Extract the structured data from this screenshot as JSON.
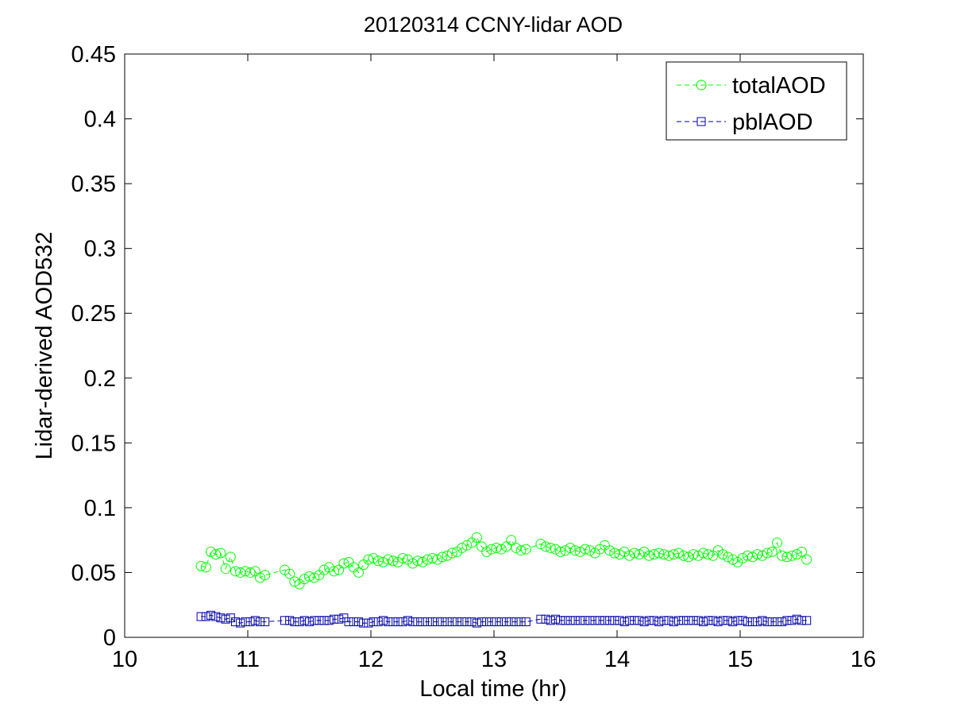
{
  "chart_data": {
    "type": "line",
    "title": "20120314 CCNY-lidar AOD",
    "xlabel": "Local time (hr)",
    "ylabel": "Lidar-derived AOD532",
    "xlim": [
      10,
      16
    ],
    "ylim": [
      0,
      0.45
    ],
    "x_ticks": [
      "10",
      "11",
      "12",
      "13",
      "14",
      "15",
      "16"
    ],
    "y_ticks": [
      "0",
      "0.05",
      "0.1",
      "0.15",
      "0.2",
      "0.25",
      "0.3",
      "0.35",
      "0.4",
      "0.45"
    ],
    "grid": false,
    "legend_position": "top-right",
    "series": [
      {
        "name": "totalAOD",
        "color": "#00ff00",
        "marker": "circle",
        "line_style": "dashed",
        "x": [
          10.62,
          10.66,
          10.7,
          10.74,
          10.78,
          10.82,
          10.86,
          10.9,
          10.94,
          10.98,
          11.02,
          11.06,
          11.1,
          11.14,
          11.3,
          11.34,
          11.38,
          11.42,
          11.46,
          11.5,
          11.54,
          11.58,
          11.62,
          11.66,
          11.7,
          11.74,
          11.78,
          11.82,
          11.86,
          11.9,
          11.94,
          11.98,
          12.02,
          12.06,
          12.1,
          12.14,
          12.18,
          12.22,
          12.26,
          12.3,
          12.34,
          12.38,
          12.42,
          12.46,
          12.5,
          12.54,
          12.58,
          12.62,
          12.66,
          12.7,
          12.74,
          12.78,
          12.82,
          12.86,
          12.9,
          12.94,
          12.98,
          13.02,
          13.06,
          13.1,
          13.14,
          13.18,
          13.22,
          13.26,
          13.38,
          13.42,
          13.46,
          13.5,
          13.54,
          13.58,
          13.62,
          13.66,
          13.7,
          13.74,
          13.78,
          13.82,
          13.86,
          13.9,
          13.94,
          13.98,
          14.02,
          14.06,
          14.1,
          14.14,
          14.18,
          14.22,
          14.26,
          14.3,
          14.34,
          14.38,
          14.42,
          14.46,
          14.5,
          14.54,
          14.58,
          14.62,
          14.66,
          14.7,
          14.74,
          14.78,
          14.82,
          14.86,
          14.9,
          14.94,
          14.98,
          15.02,
          15.06,
          15.1,
          15.14,
          15.18,
          15.22,
          15.26,
          15.3,
          15.34,
          15.38,
          15.42,
          15.46,
          15.5,
          15.54
        ],
        "values": [
          0.055,
          0.054,
          0.066,
          0.064,
          0.065,
          0.053,
          0.062,
          0.051,
          0.05,
          0.051,
          0.05,
          0.051,
          0.046,
          0.048,
          0.052,
          0.049,
          0.043,
          0.041,
          0.045,
          0.047,
          0.046,
          0.048,
          0.052,
          0.054,
          0.051,
          0.052,
          0.057,
          0.058,
          0.054,
          0.05,
          0.056,
          0.06,
          0.061,
          0.059,
          0.058,
          0.06,
          0.059,
          0.058,
          0.061,
          0.06,
          0.057,
          0.059,
          0.058,
          0.06,
          0.061,
          0.06,
          0.062,
          0.063,
          0.065,
          0.066,
          0.069,
          0.071,
          0.073,
          0.077,
          0.07,
          0.066,
          0.068,
          0.069,
          0.068,
          0.07,
          0.075,
          0.069,
          0.067,
          0.068,
          0.072,
          0.07,
          0.069,
          0.068,
          0.066,
          0.067,
          0.069,
          0.067,
          0.066,
          0.068,
          0.067,
          0.065,
          0.068,
          0.071,
          0.067,
          0.065,
          0.064,
          0.066,
          0.063,
          0.065,
          0.064,
          0.066,
          0.063,
          0.064,
          0.065,
          0.064,
          0.063,
          0.064,
          0.065,
          0.063,
          0.062,
          0.064,
          0.063,
          0.065,
          0.064,
          0.063,
          0.067,
          0.064,
          0.062,
          0.06,
          0.058,
          0.061,
          0.063,
          0.062,
          0.064,
          0.063,
          0.065,
          0.066,
          0.073,
          0.063,
          0.062,
          0.063,
          0.064,
          0.066,
          0.06
        ]
      },
      {
        "name": "pblAOD",
        "color": "#0000aa",
        "marker": "square",
        "line_style": "dashed",
        "x": [
          10.62,
          10.66,
          10.7,
          10.74,
          10.78,
          10.82,
          10.86,
          10.9,
          10.94,
          10.98,
          11.02,
          11.06,
          11.1,
          11.14,
          11.3,
          11.34,
          11.38,
          11.42,
          11.46,
          11.5,
          11.54,
          11.58,
          11.62,
          11.66,
          11.7,
          11.74,
          11.78,
          11.82,
          11.86,
          11.9,
          11.94,
          11.98,
          12.02,
          12.06,
          12.1,
          12.14,
          12.18,
          12.22,
          12.26,
          12.3,
          12.34,
          12.38,
          12.42,
          12.46,
          12.5,
          12.54,
          12.58,
          12.62,
          12.66,
          12.7,
          12.74,
          12.78,
          12.82,
          12.86,
          12.9,
          12.94,
          12.98,
          13.02,
          13.06,
          13.1,
          13.14,
          13.18,
          13.22,
          13.26,
          13.38,
          13.42,
          13.46,
          13.5,
          13.54,
          13.58,
          13.62,
          13.66,
          13.7,
          13.74,
          13.78,
          13.82,
          13.86,
          13.9,
          13.94,
          13.98,
          14.02,
          14.06,
          14.1,
          14.14,
          14.18,
          14.22,
          14.26,
          14.3,
          14.34,
          14.38,
          14.42,
          14.46,
          14.5,
          14.54,
          14.58,
          14.62,
          14.66,
          14.7,
          14.74,
          14.78,
          14.82,
          14.86,
          14.9,
          14.94,
          14.98,
          15.02,
          15.06,
          15.1,
          15.14,
          15.18,
          15.22,
          15.26,
          15.3,
          15.34,
          15.38,
          15.42,
          15.46,
          15.5,
          15.54
        ],
        "values": [
          0.016,
          0.016,
          0.017,
          0.016,
          0.015,
          0.014,
          0.015,
          0.012,
          0.011,
          0.012,
          0.012,
          0.013,
          0.012,
          0.012,
          0.013,
          0.013,
          0.012,
          0.012,
          0.013,
          0.012,
          0.013,
          0.013,
          0.013,
          0.013,
          0.014,
          0.014,
          0.015,
          0.012,
          0.012,
          0.012,
          0.011,
          0.011,
          0.012,
          0.012,
          0.013,
          0.012,
          0.012,
          0.012,
          0.012,
          0.013,
          0.012,
          0.012,
          0.012,
          0.012,
          0.012,
          0.012,
          0.012,
          0.012,
          0.012,
          0.012,
          0.012,
          0.012,
          0.012,
          0.011,
          0.012,
          0.012,
          0.012,
          0.012,
          0.012,
          0.012,
          0.012,
          0.012,
          0.012,
          0.012,
          0.014,
          0.014,
          0.013,
          0.014,
          0.013,
          0.013,
          0.013,
          0.013,
          0.013,
          0.013,
          0.013,
          0.013,
          0.013,
          0.013,
          0.013,
          0.013,
          0.013,
          0.012,
          0.013,
          0.013,
          0.013,
          0.012,
          0.013,
          0.013,
          0.012,
          0.013,
          0.013,
          0.012,
          0.013,
          0.013,
          0.013,
          0.013,
          0.013,
          0.012,
          0.013,
          0.013,
          0.012,
          0.013,
          0.013,
          0.012,
          0.013,
          0.013,
          0.012,
          0.012,
          0.012,
          0.013,
          0.012,
          0.012,
          0.012,
          0.012,
          0.013,
          0.013,
          0.014,
          0.013,
          0.013
        ]
      }
    ]
  }
}
